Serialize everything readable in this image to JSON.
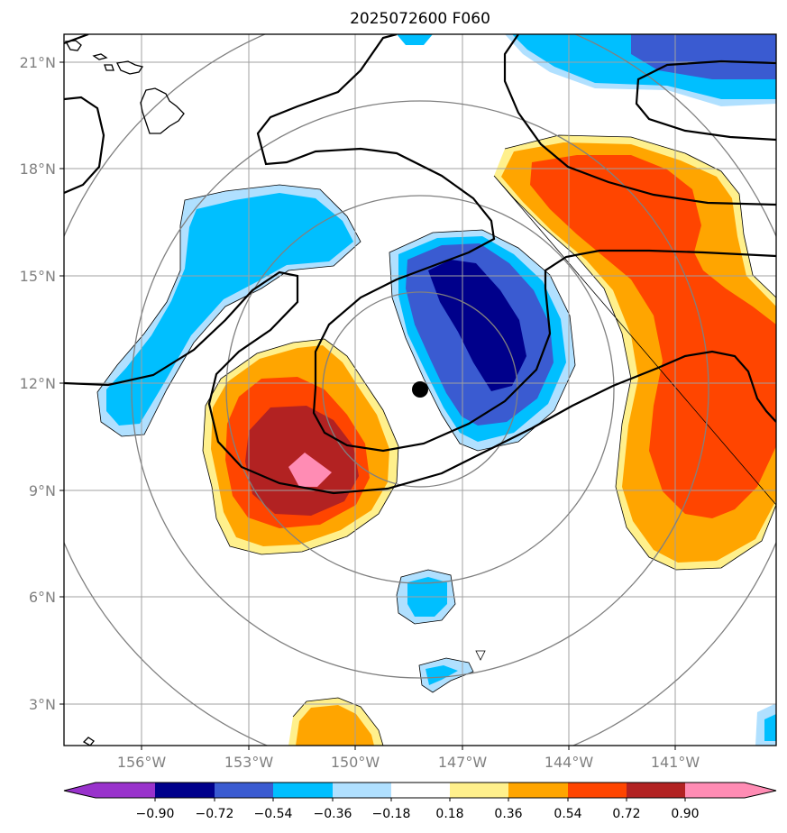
{
  "title": "2025072600 F060",
  "map": {
    "lon_labels": [
      "156°W",
      "153°W",
      "150°W",
      "147°W",
      "144°W",
      "141°W"
    ],
    "lat_labels": [
      "3°N",
      "6°N",
      "9°N",
      "12°N",
      "15°N",
      "18°N",
      "21°N"
    ],
    "grid": true,
    "storm_center": {
      "lon": -148.2,
      "lat": 11.8
    },
    "range_rings": 4
  },
  "colorbar": {
    "ticks": [
      "−0.90",
      "−0.72",
      "−0.54",
      "−0.36",
      "−0.18",
      "0.18",
      "0.36",
      "0.54",
      "0.72",
      "0.90"
    ],
    "colors": [
      "#9932cc",
      "#00008b",
      "#3a5bd1",
      "#00bfff",
      "#b0e0ff",
      "#ffffff",
      "#fff08c",
      "#ffa500",
      "#ff4500",
      "#b22222",
      "#ff8cb4"
    ]
  }
}
